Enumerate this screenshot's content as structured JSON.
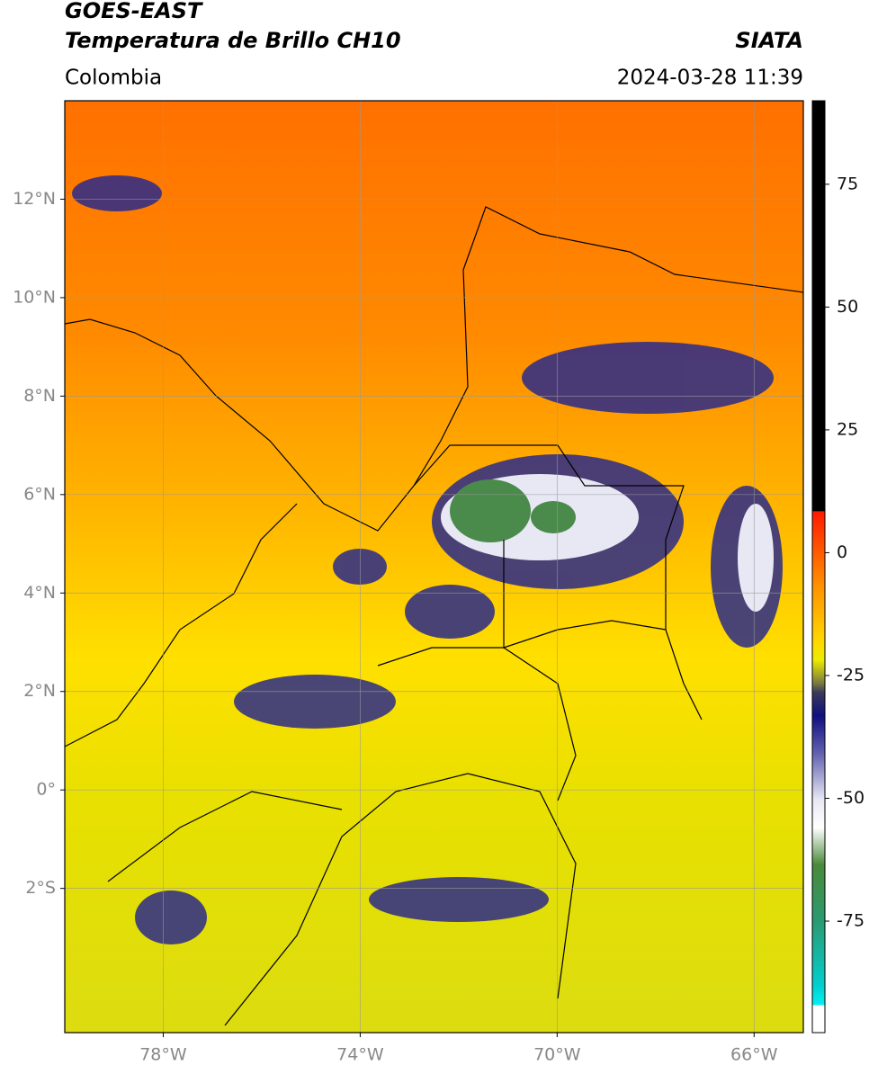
{
  "header": {
    "satellite": "GOES-EAST",
    "product": "Temperatura de Brillo CH10",
    "agency": "SIATA",
    "region": "Colombia",
    "datetime": "2024-03-28 11:39"
  },
  "map": {
    "xlim": [
      -80,
      -65
    ],
    "ylim": [
      -4.93,
      14
    ],
    "lat_ticks": [
      {
        "value": 12,
        "label": "12°N"
      },
      {
        "value": 10,
        "label": "10°N"
      },
      {
        "value": 8,
        "label": "8°N"
      },
      {
        "value": 6,
        "label": "6°N"
      },
      {
        "value": 4,
        "label": "4°N"
      },
      {
        "value": 2,
        "label": "2°N"
      },
      {
        "value": 0,
        "label": "0°"
      },
      {
        "value": -2,
        "label": "2°S"
      }
    ],
    "lon_ticks": [
      {
        "value": -78,
        "label": "78°W"
      },
      {
        "value": -74,
        "label": "74°W"
      },
      {
        "value": -70,
        "label": "70°W"
      },
      {
        "value": -66,
        "label": "66°W"
      }
    ]
  },
  "colorbar": {
    "lim": [
      -97.7,
      92
    ],
    "ticks": [
      75,
      50,
      25,
      0,
      -25,
      -50,
      -75
    ]
  }
}
